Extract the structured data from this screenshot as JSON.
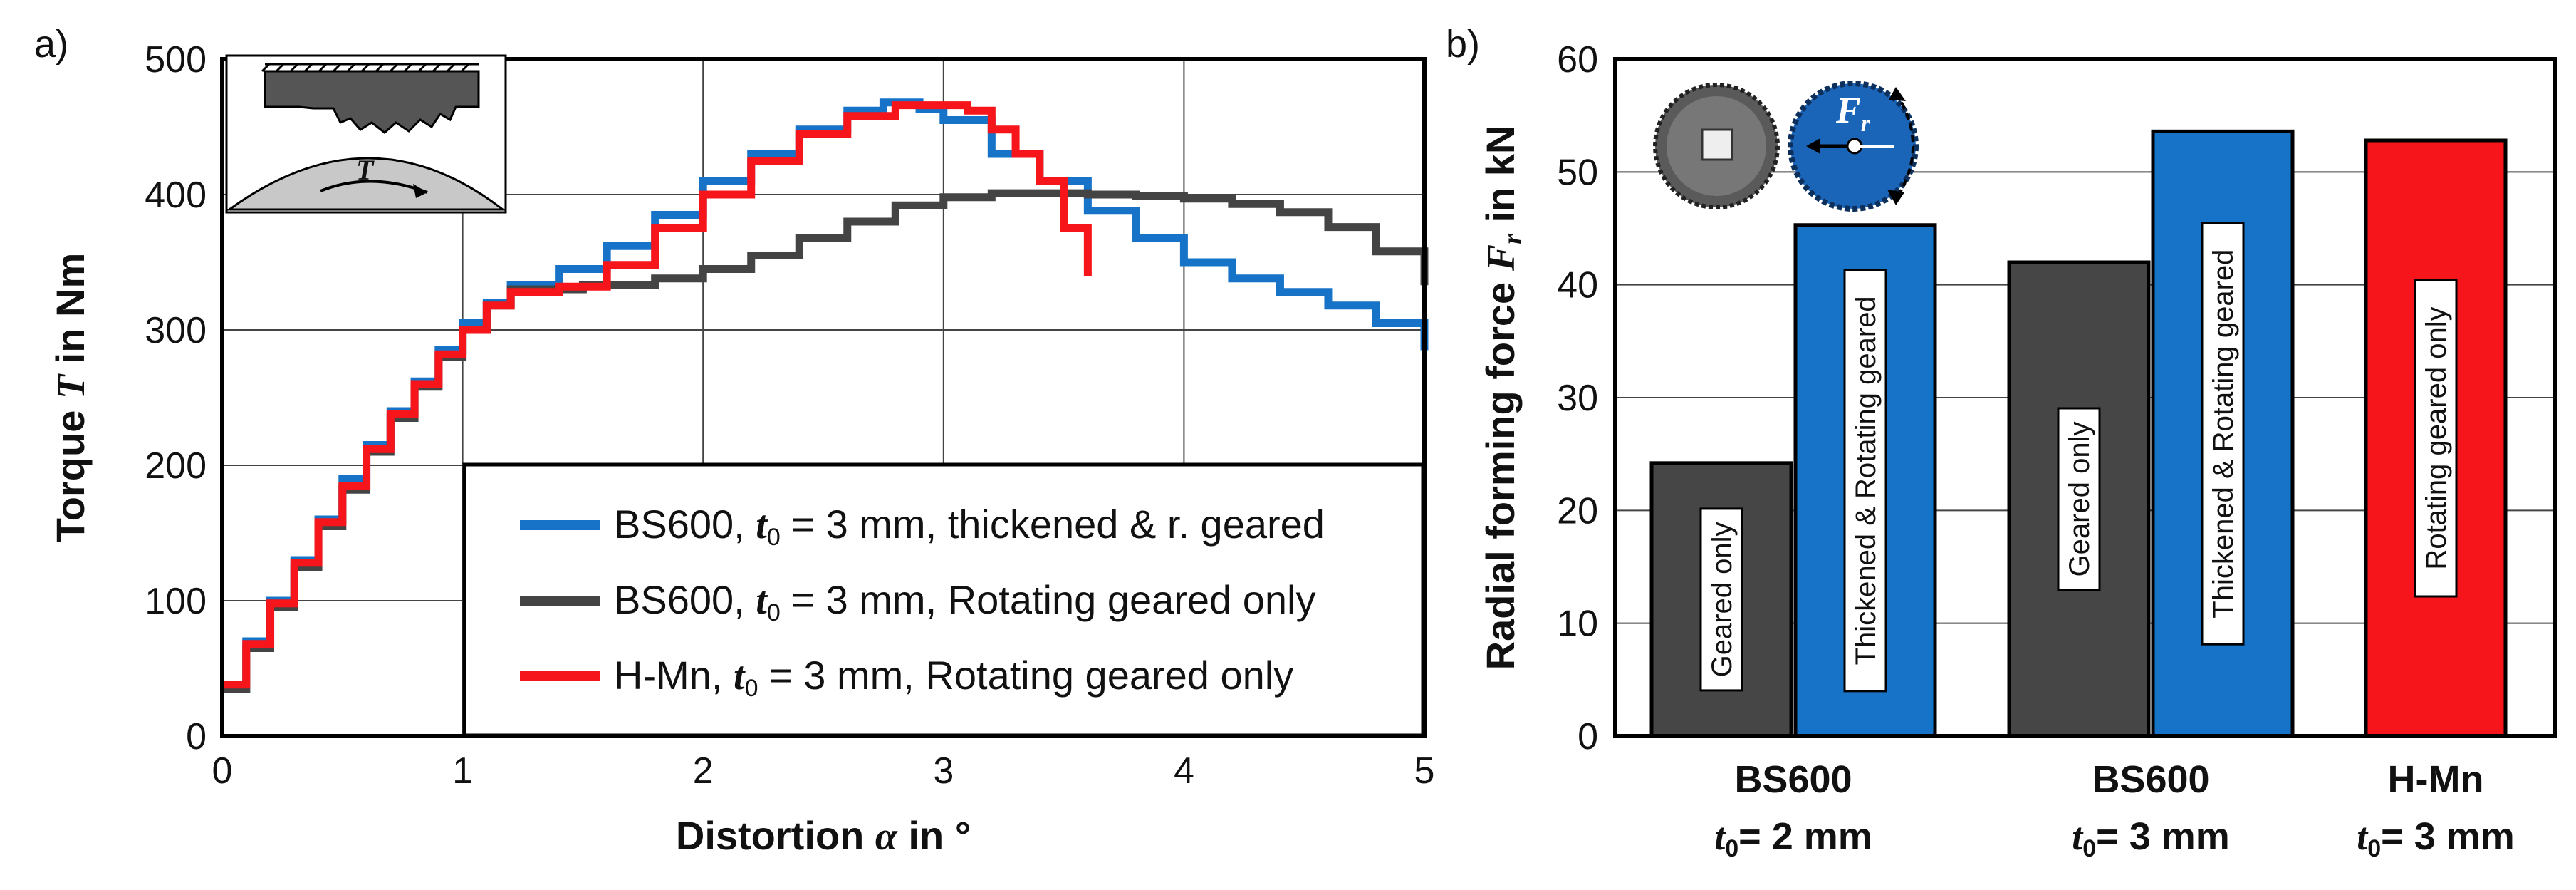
{
  "chart_data": [
    {
      "type": "line",
      "panel_label": "a)",
      "ylabel": {
        "pre": "Torque ",
        "var": "T",
        "post": " in Nm"
      },
      "xlabel": {
        "pre": "Distortion ",
        "var": "α",
        "post": " in °"
      },
      "xlim": [
        0,
        5
      ],
      "ylim": [
        0,
        500
      ],
      "xticks": [
        0,
        1,
        2,
        3,
        4,
        5
      ],
      "yticks": [
        0,
        100,
        200,
        300,
        400,
        500
      ],
      "grid": true,
      "legend_position": "bottom-right",
      "inset_label": "T",
      "series": [
        {
          "name": "BS600, t0 = 3 mm, thickened & r. geared",
          "legend": {
            "pre": "BS600, ",
            "var": "t",
            "sub": "0",
            "post": " = 3 mm, thickened & r. geared"
          },
          "color": "#1673c8",
          "x": [
            0,
            0.1,
            0.2,
            0.3,
            0.4,
            0.5,
            0.6,
            0.7,
            0.8,
            0.9,
            1.0,
            1.1,
            1.2,
            1.4,
            1.6,
            1.8,
            2.0,
            2.2,
            2.4,
            2.6,
            2.75,
            2.9,
            3.0,
            3.2,
            3.4,
            3.6,
            3.8,
            4.0,
            4.2,
            4.4,
            4.6,
            4.8,
            5.0
          ],
          "y": [
            35,
            70,
            100,
            130,
            160,
            190,
            215,
            240,
            262,
            285,
            305,
            320,
            333,
            345,
            362,
            385,
            410,
            430,
            448,
            462,
            468,
            463,
            455,
            430,
            410,
            388,
            368,
            350,
            338,
            328,
            318,
            305,
            285
          ]
        },
        {
          "name": "BS600, t0 = 3 mm, Rotating geared only",
          "legend": {
            "pre": "BS600, ",
            "var": "t",
            "sub": "0",
            "post": " = 3 mm, Rotating geared only"
          },
          "color": "#444444",
          "x": [
            0,
            0.1,
            0.2,
            0.3,
            0.4,
            0.5,
            0.6,
            0.7,
            0.8,
            0.9,
            1.0,
            1.1,
            1.2,
            1.5,
            1.8,
            2.0,
            2.2,
            2.4,
            2.6,
            2.8,
            3.0,
            3.2,
            3.4,
            3.6,
            3.8,
            4.0,
            4.2,
            4.4,
            4.6,
            4.8,
            5.0
          ],
          "y": [
            35,
            65,
            95,
            125,
            155,
            182,
            210,
            235,
            258,
            280,
            300,
            318,
            330,
            333,
            338,
            345,
            355,
            368,
            380,
            392,
            398,
            401,
            401,
            400,
            399,
            397,
            393,
            387,
            376,
            358,
            333
          ]
        },
        {
          "name": "H-Mn, t0 = 3 mm, Rotating geared only",
          "legend": {
            "pre": "H-Mn, ",
            "var": "t",
            "sub": "0",
            "post": " = 3 mm, Rotating geared only"
          },
          "color": "#f5151a",
          "x": [
            0,
            0.1,
            0.2,
            0.3,
            0.4,
            0.5,
            0.6,
            0.7,
            0.8,
            0.9,
            1.0,
            1.1,
            1.2,
            1.4,
            1.6,
            1.8,
            2.0,
            2.2,
            2.4,
            2.6,
            2.8,
            3.0,
            3.1,
            3.2,
            3.3,
            3.4,
            3.5,
            3.6
          ],
          "y": [
            38,
            68,
            98,
            128,
            158,
            185,
            212,
            238,
            260,
            282,
            300,
            318,
            328,
            332,
            348,
            375,
            400,
            425,
            445,
            458,
            466,
            466,
            462,
            448,
            430,
            410,
            375,
            340
          ]
        }
      ]
    },
    {
      "type": "bar",
      "panel_label": "b)",
      "ylabel": {
        "pre": "Radial forming force ",
        "var": "F",
        "sub": "r",
        "post": " in kN"
      },
      "ylim": [
        0,
        60
      ],
      "yticks": [
        0,
        10,
        20,
        30,
        40,
        50,
        60
      ],
      "grid": true,
      "inset_label": {
        "var": "F",
        "sub": "r"
      },
      "categories": [
        {
          "name": "BS600",
          "thickness": {
            "var": "t",
            "sub": "0",
            "post": "= 2 mm"
          }
        },
        {
          "name": "BS600",
          "thickness": {
            "var": "t",
            "sub": "0",
            "post": "= 3 mm"
          }
        },
        {
          "name": "H-Mn",
          "thickness": {
            "var": "t",
            "sub": "0",
            "post": "= 3 mm"
          }
        }
      ],
      "bars": [
        {
          "category": 0,
          "label": "Geared only",
          "value": 24.2,
          "color": "#464646"
        },
        {
          "category": 0,
          "label": "Thickened & Rotating geared",
          "value": 45.3,
          "color": "#1673c8"
        },
        {
          "category": 1,
          "label": "Geared only",
          "value": 42.0,
          "color": "#464646"
        },
        {
          "category": 1,
          "label": "Thickened & Rotating geared",
          "value": 53.6,
          "color": "#1673c8"
        },
        {
          "category": 2,
          "label": "Rotating geared only",
          "value": 52.8,
          "color": "#f5151a"
        }
      ]
    }
  ]
}
